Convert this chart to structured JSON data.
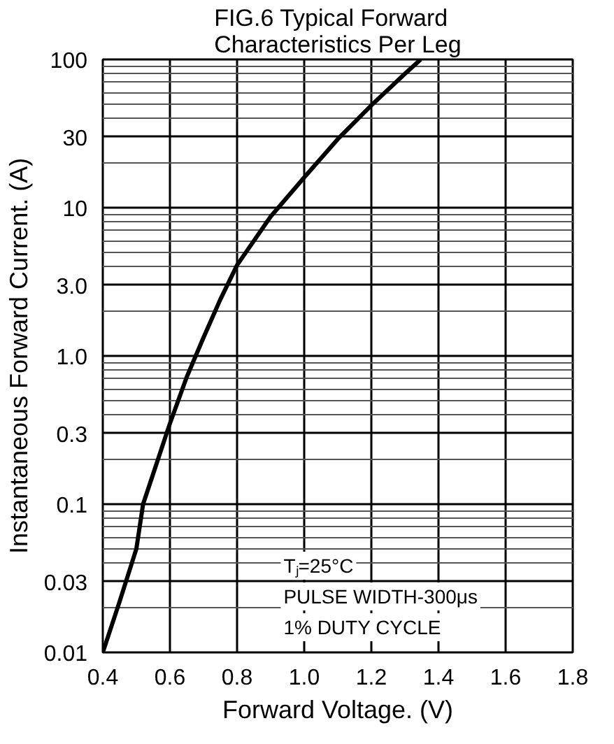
{
  "chart_data": {
    "type": "line",
    "title": "FIG.6 Typical Forward Characteristics Per Leg",
    "xlabel": "Forward Voltage. (V)",
    "ylabel": "Instantaneous Forward Current. (A)",
    "x": [
      0.4,
      0.45,
      0.5,
      0.52,
      0.55,
      0.59,
      0.6,
      0.65,
      0.7,
      0.75,
      0.8,
      0.9,
      1.0,
      1.1,
      1.2,
      1.3,
      1.347
    ],
    "series": [
      {
        "color": "#000000",
        "values": [
          0.01,
          0.022,
          0.05,
          0.1,
          0.16,
          0.3,
          0.35,
          0.72,
          1.33,
          2.4,
          4.1,
          8.7,
          16,
          29,
          49,
          80,
          100
        ]
      }
    ],
    "xlim": [
      0.4,
      1.8
    ],
    "xticks": [
      0.4,
      0.6,
      0.8,
      {
        "value": 1,
        "label": "1.0"
      },
      1.2,
      1.4,
      1.6,
      1.8
    ],
    "ylim": [
      0.01,
      100
    ],
    "yticks": [
      0.01,
      0.03,
      0.1,
      0.3,
      {
        "value": 1,
        "label": "1.0"
      },
      {
        "value": 3,
        "label": "3.0"
      },
      10,
      30,
      100
    ],
    "log": "y",
    "grid": true,
    "marker": "none",
    "line_style": "solid",
    "annotations": [
      "Tⱼ=25°C",
      "PULSE WIDTH-300μs",
      "1% DUTY CYCLE"
    ]
  }
}
